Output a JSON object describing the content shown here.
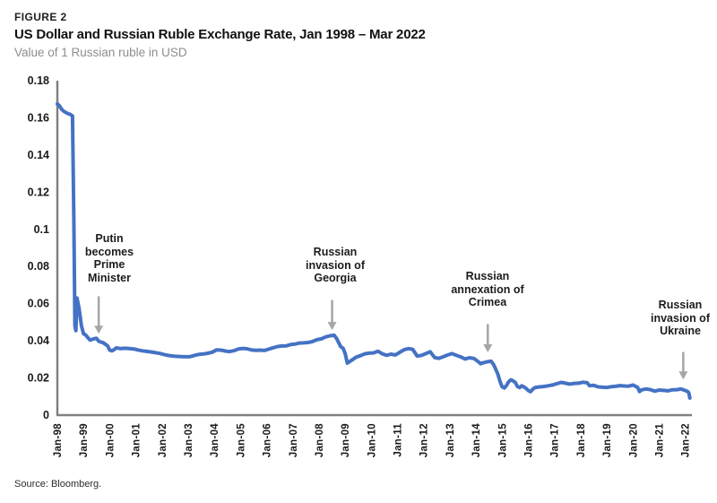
{
  "figure_label": "FIGURE 2",
  "title": "US Dollar and Russian Ruble Exchange Rate, Jan 1998 – Mar 2022",
  "subtitle": "Value of 1 Russian ruble in USD",
  "source": "Source: Bloomberg.",
  "colors": {
    "line_blue": "#4472C4",
    "axis_gray": "#808080",
    "arrow_gray": "#A6A6A6",
    "tick_label": "#1a1a1a",
    "title_black": "#111111",
    "subtitle_gray": "#8d8d8d",
    "background": "#ffffff"
  },
  "chart_data": {
    "type": "line",
    "title": "US Dollar and Russian Ruble Exchange Rate, Jan 1998 – Mar 2022",
    "xlabel": "",
    "ylabel": "Value of 1 Russian ruble in USD",
    "grid": false,
    "legend": "none",
    "ylim": [
      0,
      0.18
    ],
    "x_range_years": [
      1998.0,
      2022.25
    ],
    "y_ticks": [
      {
        "value": 0,
        "label": "0"
      },
      {
        "value": 0.02,
        "label": "0.02"
      },
      {
        "value": 0.04,
        "label": "0.04"
      },
      {
        "value": 0.06,
        "label": "0.06"
      },
      {
        "value": 0.08,
        "label": "0.08"
      },
      {
        "value": 0.1,
        "label": "0.1"
      },
      {
        "value": 0.12,
        "label": "0.12"
      },
      {
        "value": 0.14,
        "label": "0.14"
      },
      {
        "value": 0.16,
        "label": "0.16"
      },
      {
        "value": 0.18,
        "label": "0.18"
      }
    ],
    "x_tick_labels": [
      "Jan-98",
      "Jan-99",
      "Jan-00",
      "Jan-01",
      "Jan-02",
      "Jan-03",
      "Jan-04",
      "Jan-05",
      "Jan-06",
      "Jan-07",
      "Jan-08",
      "Jan-09",
      "Jan-10",
      "Jan-11",
      "Jan-12",
      "Jan-13",
      "Jan-14",
      "Jan-15",
      "Jan-16",
      "Jan-17",
      "Jan-18",
      "Jan-19",
      "Jan-20",
      "Jan-21",
      "Jan-22"
    ],
    "series": [
      {
        "name": "Value of 1 Russian ruble in USD",
        "points": [
          [
            1998.0,
            0.1675
          ],
          [
            1998.08,
            0.1665
          ],
          [
            1998.17,
            0.1645
          ],
          [
            1998.25,
            0.1635
          ],
          [
            1998.33,
            0.1628
          ],
          [
            1998.42,
            0.1622
          ],
          [
            1998.5,
            0.1618
          ],
          [
            1998.58,
            0.161
          ],
          [
            1998.63,
            0.105
          ],
          [
            1998.67,
            0.048
          ],
          [
            1998.71,
            0.0455
          ],
          [
            1998.75,
            0.063
          ],
          [
            1998.83,
            0.0575
          ],
          [
            1998.92,
            0.048
          ],
          [
            1999.0,
            0.0438
          ],
          [
            1999.08,
            0.0432
          ],
          [
            1999.17,
            0.0416
          ],
          [
            1999.25,
            0.0404
          ],
          [
            1999.33,
            0.0408
          ],
          [
            1999.42,
            0.0412
          ],
          [
            1999.5,
            0.0413
          ],
          [
            1999.58,
            0.0398
          ],
          [
            1999.67,
            0.0393
          ],
          [
            1999.75,
            0.039
          ],
          [
            1999.83,
            0.0382
          ],
          [
            1999.92,
            0.0373
          ],
          [
            2000.0,
            0.035
          ],
          [
            2000.08,
            0.0346
          ],
          [
            2000.17,
            0.0353
          ],
          [
            2000.25,
            0.0362
          ],
          [
            2000.42,
            0.0358
          ],
          [
            2000.58,
            0.036
          ],
          [
            2000.75,
            0.0358
          ],
          [
            2000.92,
            0.0356
          ],
          [
            2001.08,
            0.0351
          ],
          [
            2001.25,
            0.0346
          ],
          [
            2001.42,
            0.0343
          ],
          [
            2001.58,
            0.034
          ],
          [
            2001.75,
            0.0336
          ],
          [
            2001.92,
            0.0332
          ],
          [
            2002.08,
            0.0326
          ],
          [
            2002.25,
            0.0321
          ],
          [
            2002.42,
            0.0318
          ],
          [
            2002.58,
            0.0316
          ],
          [
            2002.75,
            0.0315
          ],
          [
            2002.92,
            0.0314
          ],
          [
            2003.08,
            0.0315
          ],
          [
            2003.25,
            0.0322
          ],
          [
            2003.42,
            0.0327
          ],
          [
            2003.58,
            0.0329
          ],
          [
            2003.75,
            0.0333
          ],
          [
            2003.92,
            0.0339
          ],
          [
            2004.08,
            0.0351
          ],
          [
            2004.25,
            0.035
          ],
          [
            2004.42,
            0.0345
          ],
          [
            2004.58,
            0.0342
          ],
          [
            2004.75,
            0.0347
          ],
          [
            2004.92,
            0.0356
          ],
          [
            2005.08,
            0.0359
          ],
          [
            2005.25,
            0.0357
          ],
          [
            2005.42,
            0.0351
          ],
          [
            2005.58,
            0.0349
          ],
          [
            2005.75,
            0.035
          ],
          [
            2005.92,
            0.0348
          ],
          [
            2006.08,
            0.0355
          ],
          [
            2006.25,
            0.0363
          ],
          [
            2006.42,
            0.0369
          ],
          [
            2006.58,
            0.0372
          ],
          [
            2006.75,
            0.0373
          ],
          [
            2006.92,
            0.038
          ],
          [
            2007.08,
            0.0382
          ],
          [
            2007.25,
            0.0388
          ],
          [
            2007.42,
            0.0389
          ],
          [
            2007.58,
            0.0391
          ],
          [
            2007.75,
            0.0396
          ],
          [
            2007.92,
            0.0406
          ],
          [
            2008.08,
            0.041
          ],
          [
            2008.25,
            0.0421
          ],
          [
            2008.42,
            0.0427
          ],
          [
            2008.58,
            0.043
          ],
          [
            2008.67,
            0.0413
          ],
          [
            2008.75,
            0.039
          ],
          [
            2008.83,
            0.0368
          ],
          [
            2008.92,
            0.036
          ],
          [
            2009.0,
            0.033
          ],
          [
            2009.08,
            0.028
          ],
          [
            2009.17,
            0.0288
          ],
          [
            2009.25,
            0.0296
          ],
          [
            2009.42,
            0.0312
          ],
          [
            2009.58,
            0.032
          ],
          [
            2009.75,
            0.033
          ],
          [
            2009.92,
            0.0334
          ],
          [
            2010.08,
            0.0335
          ],
          [
            2010.25,
            0.0344
          ],
          [
            2010.42,
            0.033
          ],
          [
            2010.58,
            0.0322
          ],
          [
            2010.75,
            0.0328
          ],
          [
            2010.92,
            0.0324
          ],
          [
            2011.08,
            0.0338
          ],
          [
            2011.25,
            0.0352
          ],
          [
            2011.42,
            0.0358
          ],
          [
            2011.58,
            0.0354
          ],
          [
            2011.75,
            0.0318
          ],
          [
            2011.92,
            0.0322
          ],
          [
            2012.08,
            0.0331
          ],
          [
            2012.25,
            0.0341
          ],
          [
            2012.42,
            0.031
          ],
          [
            2012.58,
            0.0306
          ],
          [
            2012.75,
            0.0314
          ],
          [
            2012.92,
            0.0324
          ],
          [
            2013.08,
            0.0331
          ],
          [
            2013.25,
            0.0322
          ],
          [
            2013.42,
            0.0313
          ],
          [
            2013.58,
            0.0302
          ],
          [
            2013.75,
            0.0309
          ],
          [
            2013.92,
            0.0305
          ],
          [
            2014.08,
            0.0288
          ],
          [
            2014.17,
            0.0277
          ],
          [
            2014.25,
            0.0281
          ],
          [
            2014.42,
            0.0287
          ],
          [
            2014.58,
            0.029
          ],
          [
            2014.67,
            0.0272
          ],
          [
            2014.75,
            0.0248
          ],
          [
            2014.83,
            0.0222
          ],
          [
            2014.92,
            0.018
          ],
          [
            2015.0,
            0.0152
          ],
          [
            2015.08,
            0.0146
          ],
          [
            2015.17,
            0.0161
          ],
          [
            2015.25,
            0.018
          ],
          [
            2015.33,
            0.019
          ],
          [
            2015.42,
            0.0184
          ],
          [
            2015.5,
            0.0176
          ],
          [
            2015.58,
            0.0154
          ],
          [
            2015.67,
            0.0148
          ],
          [
            2015.75,
            0.0158
          ],
          [
            2015.83,
            0.0152
          ],
          [
            2015.92,
            0.0143
          ],
          [
            2016.0,
            0.0132
          ],
          [
            2016.08,
            0.0126
          ],
          [
            2016.17,
            0.014
          ],
          [
            2016.25,
            0.0148
          ],
          [
            2016.42,
            0.0152
          ],
          [
            2016.58,
            0.0154
          ],
          [
            2016.75,
            0.0158
          ],
          [
            2016.92,
            0.0162
          ],
          [
            2017.08,
            0.0169
          ],
          [
            2017.25,
            0.0176
          ],
          [
            2017.42,
            0.0172
          ],
          [
            2017.58,
            0.0167
          ],
          [
            2017.75,
            0.0171
          ],
          [
            2017.92,
            0.0172
          ],
          [
            2018.08,
            0.0177
          ],
          [
            2018.25,
            0.0174
          ],
          [
            2018.33,
            0.0159
          ],
          [
            2018.5,
            0.016
          ],
          [
            2018.67,
            0.0152
          ],
          [
            2018.83,
            0.015
          ],
          [
            2019.0,
            0.0149
          ],
          [
            2019.17,
            0.0153
          ],
          [
            2019.33,
            0.0155
          ],
          [
            2019.5,
            0.0159
          ],
          [
            2019.67,
            0.0157
          ],
          [
            2019.83,
            0.0156
          ],
          [
            2020.0,
            0.0162
          ],
          [
            2020.17,
            0.015
          ],
          [
            2020.25,
            0.0127
          ],
          [
            2020.33,
            0.0136
          ],
          [
            2020.5,
            0.0141
          ],
          [
            2020.67,
            0.0137
          ],
          [
            2020.83,
            0.0129
          ],
          [
            2021.0,
            0.0135
          ],
          [
            2021.17,
            0.0133
          ],
          [
            2021.33,
            0.0131
          ],
          [
            2021.5,
            0.0136
          ],
          [
            2021.67,
            0.0137
          ],
          [
            2021.83,
            0.0141
          ],
          [
            2021.92,
            0.0136
          ],
          [
            2022.0,
            0.0132
          ],
          [
            2022.08,
            0.0128
          ],
          [
            2022.13,
            0.012
          ],
          [
            2022.17,
            0.0092
          ]
        ]
      }
    ],
    "annotations": [
      {
        "id": "putin",
        "lines": [
          "Putin",
          "becomes",
          "Prime",
          "Minister"
        ],
        "arrow_x_year": 1999.58,
        "arrow_from_value": 0.064,
        "arrow_to_value": 0.0438
      },
      {
        "id": "georgia",
        "lines": [
          "Russian",
          "invasion of",
          "Georgia"
        ],
        "arrow_x_year": 2008.5,
        "arrow_from_value": 0.062,
        "arrow_to_value": 0.0458
      },
      {
        "id": "crimea",
        "lines": [
          "Russian",
          "annexation of",
          "Crimea"
        ],
        "arrow_x_year": 2014.45,
        "arrow_from_value": 0.049,
        "arrow_to_value": 0.0338
      },
      {
        "id": "ukraine",
        "lines": [
          "Russian",
          "invasion of",
          "Ukraine"
        ],
        "arrow_x_year": 2021.92,
        "arrow_from_value": 0.034,
        "arrow_to_value": 0.0192
      }
    ]
  }
}
